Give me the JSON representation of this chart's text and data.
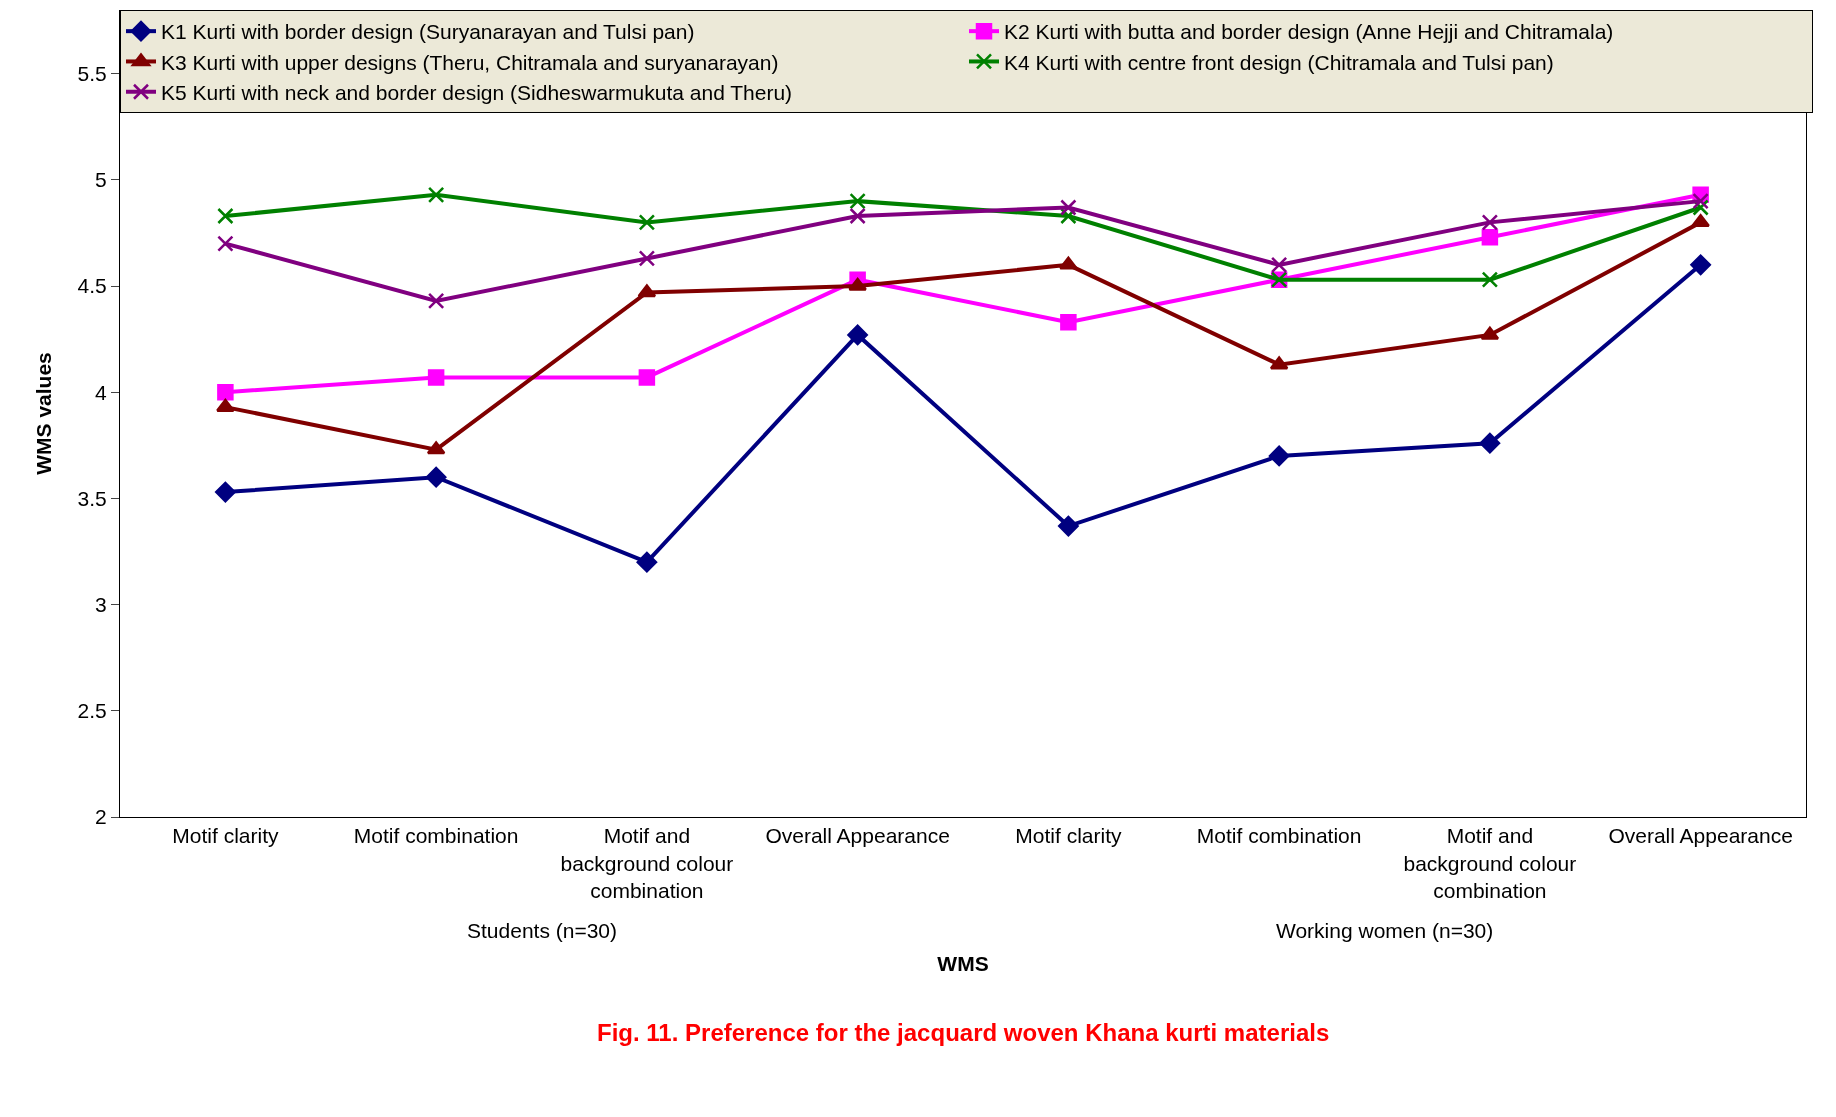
{
  "chart_data": {
    "type": "line",
    "title": "Fig. 11. Preference for the jacquard woven Khana kurti materials",
    "xlabel": "WMS",
    "ylabel": "WMS values",
    "categories": [
      "Motif clarity",
      "Motif combination",
      "Motif and background colour combination",
      "Overall Appearance",
      "Motif clarity",
      "Motif combination",
      "Motif and background colour combination",
      "Overall Appearance"
    ],
    "annotations": [
      "Students (n=30)",
      "Working women (n=30)"
    ],
    "series": [
      {
        "name": "K1 Kurti with border design (Suryanarayan and Tulsi pan)",
        "color": "#000080",
        "marker": "diamond",
        "values": [
          3.53,
          3.6,
          3.2,
          4.27,
          3.37,
          3.7,
          3.76,
          4.6
        ]
      },
      {
        "name": "K2 Kurti with butta and border design (Anne Hejji and Chitramala)",
        "color": "#ff00ff",
        "marker": "square",
        "values": [
          4.0,
          4.07,
          4.07,
          4.53,
          4.33,
          4.53,
          4.73,
          4.93
        ]
      },
      {
        "name": "K3 Kurti with upper designs (Theru, Chitramala and suryanarayan)",
        "color": "#800000",
        "marker": "triangle",
        "values": [
          3.93,
          3.73,
          4.47,
          4.5,
          4.6,
          4.13,
          4.27,
          4.8
        ]
      },
      {
        "name": "K4 Kurti with centre front design (Chitramala and Tulsi pan)",
        "color": "#008000",
        "marker": "cross",
        "values": [
          4.83,
          4.93,
          4.8,
          4.9,
          4.83,
          4.53,
          4.53,
          4.87
        ]
      },
      {
        "name": "K5 Kurti with neck and border design (Sidheswarmukuta and Theru)",
        "color": "#800080",
        "marker": "cross",
        "values": [
          4.7,
          4.43,
          4.63,
          4.83,
          4.87,
          4.6,
          4.8,
          4.9
        ]
      }
    ],
    "ylim": [
      2,
      5.8
    ],
    "yticks": [
      2,
      2.5,
      3,
      3.5,
      4,
      4.5,
      5,
      5.5
    ],
    "grid": false,
    "legend": "top",
    "line_style": "solid"
  }
}
